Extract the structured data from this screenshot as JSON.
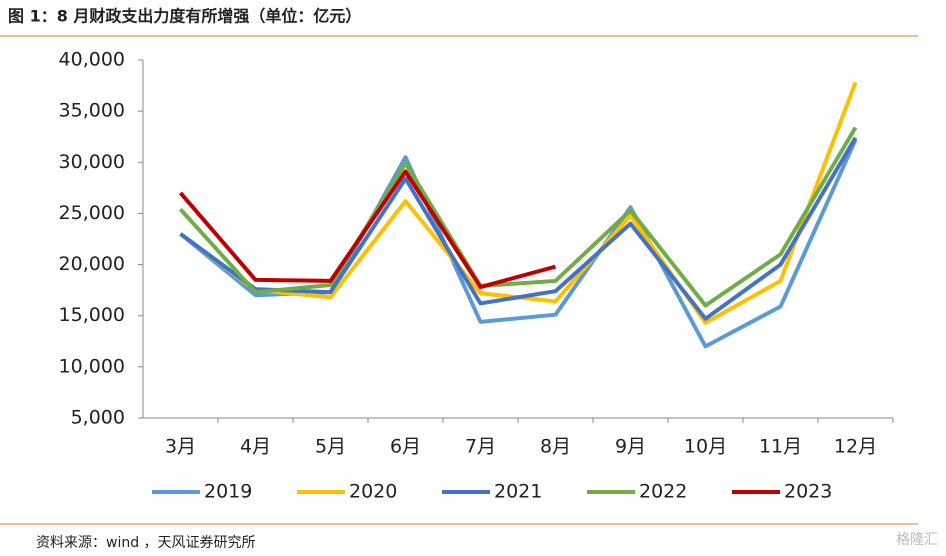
{
  "title": "图 1：8 月财政支出力度有所增强（单位：亿元）",
  "source": "资料来源：wind ，天风证券研究所",
  "watermark": "格隆汇",
  "chart_data": {
    "type": "line",
    "categories": [
      "3月",
      "4月",
      "5月",
      "6月",
      "7月",
      "8月",
      "9月",
      "10月",
      "11月",
      "12月"
    ],
    "series": [
      {
        "name": "2019",
        "color": "#5b9bd5",
        "values": [
          23000,
          17000,
          17300,
          30500,
          14400,
          15100,
          25600,
          12000,
          15900,
          32200
        ]
      },
      {
        "name": "2020",
        "color": "#ffc000",
        "values": [
          23000,
          17500,
          16800,
          26200,
          17200,
          16400,
          24800,
          14300,
          18400,
          37800
        ]
      },
      {
        "name": "2021",
        "color": "#4472c4",
        "values": [
          23000,
          17600,
          17300,
          28400,
          16200,
          17400,
          24000,
          14700,
          20000,
          32400
        ]
      },
      {
        "name": "2022",
        "color": "#70ad47",
        "values": [
          25400,
          17300,
          18000,
          29900,
          17900,
          18400,
          25300,
          16000,
          21000,
          33400
        ]
      },
      {
        "name": "2023",
        "color": "#c00000",
        "values": [
          27000,
          18500,
          18400,
          29100,
          17800,
          19800,
          null,
          null,
          null,
          null
        ]
      }
    ],
    "ylim": [
      5000,
      40000
    ],
    "yticks": [
      {
        "value": 5000,
        "label": "5,000"
      },
      {
        "value": 10000,
        "label": "10,000"
      },
      {
        "value": 15000,
        "label": "15,000"
      },
      {
        "value": 20000,
        "label": "20,000"
      },
      {
        "value": 25000,
        "label": "25,000"
      },
      {
        "value": 30000,
        "label": "30,000"
      },
      {
        "value": 35000,
        "label": "35,000"
      },
      {
        "value": 40000,
        "label": "40,000"
      }
    ],
    "legend": "bottom"
  }
}
